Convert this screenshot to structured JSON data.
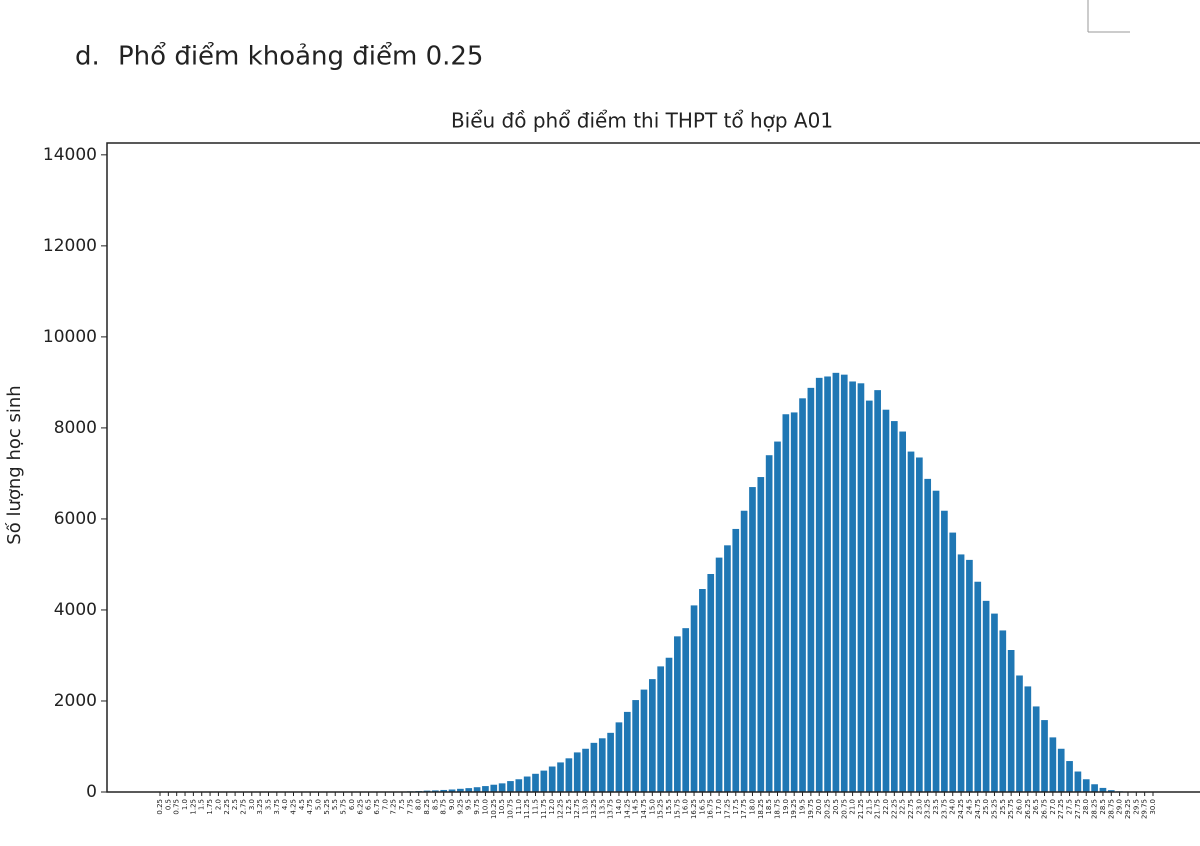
{
  "heading": {
    "marker": "d.",
    "text": "Phổ điểm khoảng điểm 0.25"
  },
  "chart_data": {
    "type": "bar",
    "title": "Biểu đồ phổ điểm thi THPT tổ hợp A01",
    "y_label": "Số lượng học sinh",
    "color": "#1f77b4",
    "grid": false,
    "ylim": [
      0,
      14260
    ],
    "yticks": [
      0,
      2000,
      4000,
      6000,
      8000,
      10000,
      12000,
      14000
    ],
    "categories": [
      "0.25",
      "0.5",
      "0.75",
      "1.0",
      "1.25",
      "1.5",
      "1.75",
      "2.0",
      "2.25",
      "2.5",
      "2.75",
      "3.0",
      "3.25",
      "3.5",
      "3.75",
      "4.0",
      "4.25",
      "4.5",
      "4.75",
      "5.0",
      "5.25",
      "5.5",
      "5.75",
      "6.0",
      "6.25",
      "6.5",
      "6.75",
      "7.0",
      "7.25",
      "7.5",
      "7.75",
      "8.0",
      "8.25",
      "8.5",
      "8.75",
      "9.0",
      "9.25",
      "9.5",
      "9.75",
      "10.0",
      "10.25",
      "10.5",
      "10.75",
      "11.0",
      "11.25",
      "11.5",
      "11.75",
      "12.0",
      "12.25",
      "12.5",
      "12.75",
      "13.0",
      "13.25",
      "13.5",
      "13.75",
      "14.0",
      "14.25",
      "14.5",
      "14.75",
      "15.0",
      "15.25",
      "15.5",
      "15.75",
      "16.0",
      "16.25",
      "16.5",
      "16.75",
      "17.0",
      "17.25",
      "17.5",
      "17.75",
      "18.0",
      "18.25",
      "18.5",
      "18.75",
      "19.0",
      "19.25",
      "19.5",
      "19.75",
      "20.0",
      "20.25",
      "20.5",
      "20.75",
      "21.0",
      "21.25",
      "21.5",
      "21.75",
      "22.0",
      "22.25",
      "22.5",
      "22.75",
      "23.0",
      "23.25",
      "23.5",
      "23.75",
      "24.0",
      "24.25",
      "24.5",
      "24.75",
      "25.0",
      "25.25",
      "25.5",
      "25.75",
      "26.0",
      "26.25",
      "26.5",
      "26.75",
      "27.0",
      "27.25",
      "27.5",
      "27.75",
      "28.0",
      "28.25",
      "28.5",
      "28.75",
      "29.0",
      "29.25",
      "29.5",
      "29.75",
      "30.0"
    ],
    "values": [
      0,
      0,
      0,
      0,
      0,
      0,
      0,
      0,
      0,
      0,
      0,
      0,
      0,
      0,
      0,
      0,
      0,
      0,
      1,
      1,
      1,
      2,
      2,
      3,
      3,
      4,
      4,
      5,
      5,
      8,
      15,
      20,
      30,
      35,
      45,
      55,
      70,
      85,
      105,
      130,
      160,
      190,
      240,
      280,
      340,
      400,
      470,
      560,
      650,
      740,
      870,
      950,
      1080,
      1180,
      1300,
      1530,
      1760,
      2020,
      2250,
      2480,
      2760,
      2950,
      3420,
      3600,
      4100,
      4460,
      4790,
      5150,
      5420,
      5780,
      6180,
      6700,
      6920,
      7400,
      7700,
      8300,
      8340,
      8650,
      8880,
      9100,
      9130,
      9210,
      9170,
      9020,
      8980,
      8600,
      8830,
      8400,
      8150,
      7920,
      7480,
      7350,
      6880,
      6620,
      6180,
      5700,
      5220,
      5100,
      4620,
      4200,
      3920,
      3550,
      3120,
      2560,
      2320,
      1880,
      1580,
      1200,
      950,
      680,
      450,
      280,
      170,
      90,
      40,
      15,
      5,
      2,
      1,
      0
    ]
  }
}
